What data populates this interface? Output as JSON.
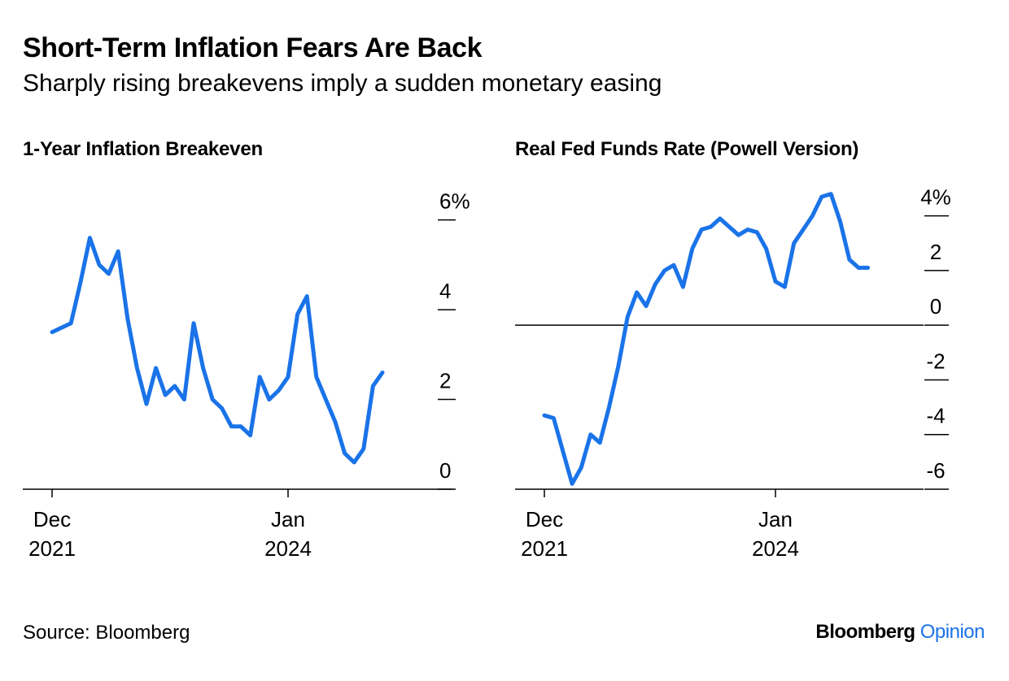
{
  "header": {
    "title": "Short-Term Inflation Fears Are Back",
    "subtitle": "Sharply rising breakevens imply a sudden monetary easing"
  },
  "footer": {
    "source": "Source: Bloomberg",
    "brand": "Bloomberg",
    "brand_suffix": "Opinion"
  },
  "colors": {
    "line": "#1a73e8",
    "axis": "#000000"
  },
  "chart_data": [
    {
      "type": "line",
      "title": "1-Year Inflation Breakeven",
      "x_ticks": [
        {
          "date": "2021-12",
          "line1": "Dec",
          "line2": "2021"
        },
        {
          "date": "2024-01",
          "line1": "Jan",
          "line2": "2024"
        }
      ],
      "y_ticks": [
        {
          "value": 6,
          "label": "6%"
        },
        {
          "value": 4,
          "label": "4"
        },
        {
          "value": 2,
          "label": "2"
        },
        {
          "value": 0,
          "label": "0"
        }
      ],
      "xlim": [
        "2021-10",
        "2025-08"
      ],
      "ylim": [
        0,
        6.7
      ],
      "series": [
        {
          "values": [
            [
              "2021-12",
              3.5
            ],
            [
              "2022-01",
              3.6
            ],
            [
              "2022-02",
              3.7
            ],
            [
              "2022-03",
              4.6
            ],
            [
              "2022-04",
              5.6
            ],
            [
              "2022-05",
              5.0
            ],
            [
              "2022-06",
              4.8
            ],
            [
              "2022-07",
              5.3
            ],
            [
              "2022-08",
              3.8
            ],
            [
              "2022-09",
              2.7
            ],
            [
              "2022-10",
              1.9
            ],
            [
              "2022-11",
              2.7
            ],
            [
              "2022-12",
              2.1
            ],
            [
              "2023-01",
              2.3
            ],
            [
              "2023-02",
              2.0
            ],
            [
              "2023-03",
              3.7
            ],
            [
              "2023-04",
              2.7
            ],
            [
              "2023-05",
              2.0
            ],
            [
              "2023-06",
              1.8
            ],
            [
              "2023-07",
              1.4
            ],
            [
              "2023-08",
              1.4
            ],
            [
              "2023-09",
              1.2
            ],
            [
              "2023-10",
              2.5
            ],
            [
              "2023-11",
              2.0
            ],
            [
              "2023-12",
              2.2
            ],
            [
              "2024-01",
              2.5
            ],
            [
              "2024-02",
              3.9
            ],
            [
              "2024-03",
              4.3
            ],
            [
              "2024-04",
              2.5
            ],
            [
              "2024-05",
              2.0
            ],
            [
              "2024-06",
              1.5
            ],
            [
              "2024-07",
              0.8
            ],
            [
              "2024-08",
              0.6
            ],
            [
              "2024-09",
              0.9
            ],
            [
              "2024-10",
              2.3
            ],
            [
              "2024-11",
              2.6
            ]
          ]
        }
      ]
    },
    {
      "type": "line",
      "title": "Real Fed Funds Rate (Powell Version)",
      "x_ticks": [
        {
          "date": "2021-12",
          "line1": "Dec",
          "line2": "2021"
        },
        {
          "date": "2024-01",
          "line1": "Jan",
          "line2": "2024"
        }
      ],
      "y_ticks": [
        {
          "value": 4,
          "label": "4%"
        },
        {
          "value": 2,
          "label": "2"
        },
        {
          "value": 0,
          "label": "0"
        },
        {
          "value": -2,
          "label": "-2"
        },
        {
          "value": -4,
          "label": "-4"
        },
        {
          "value": -6,
          "label": "-6"
        }
      ],
      "zero_line": 0,
      "xlim": [
        "2021-10",
        "2025-08"
      ],
      "ylim": [
        -6,
        5.0
      ],
      "series": [
        {
          "values": [
            [
              "2021-12",
              -3.3
            ],
            [
              "2022-01",
              -3.4
            ],
            [
              "2022-02",
              -4.6
            ],
            [
              "2022-03",
              -5.8
            ],
            [
              "2022-04",
              -5.2
            ],
            [
              "2022-05",
              -4.0
            ],
            [
              "2022-06",
              -4.3
            ],
            [
              "2022-07",
              -3.0
            ],
            [
              "2022-08",
              -1.5
            ],
            [
              "2022-09",
              0.3
            ],
            [
              "2022-10",
              1.2
            ],
            [
              "2022-11",
              0.7
            ],
            [
              "2022-12",
              1.5
            ],
            [
              "2023-01",
              2.0
            ],
            [
              "2023-02",
              2.2
            ],
            [
              "2023-03",
              1.4
            ],
            [
              "2023-04",
              2.8
            ],
            [
              "2023-05",
              3.5
            ],
            [
              "2023-06",
              3.6
            ],
            [
              "2023-07",
              3.9
            ],
            [
              "2023-08",
              3.6
            ],
            [
              "2023-09",
              3.3
            ],
            [
              "2023-10",
              3.5
            ],
            [
              "2023-11",
              3.4
            ],
            [
              "2023-12",
              2.8
            ],
            [
              "2024-01",
              1.6
            ],
            [
              "2024-02",
              1.4
            ],
            [
              "2024-03",
              3.0
            ],
            [
              "2024-04",
              3.5
            ],
            [
              "2024-05",
              4.0
            ],
            [
              "2024-06",
              4.7
            ],
            [
              "2024-07",
              4.8
            ],
            [
              "2024-08",
              3.8
            ],
            [
              "2024-09",
              2.4
            ],
            [
              "2024-10",
              2.1
            ],
            [
              "2024-11",
              2.1
            ]
          ]
        }
      ]
    }
  ]
}
